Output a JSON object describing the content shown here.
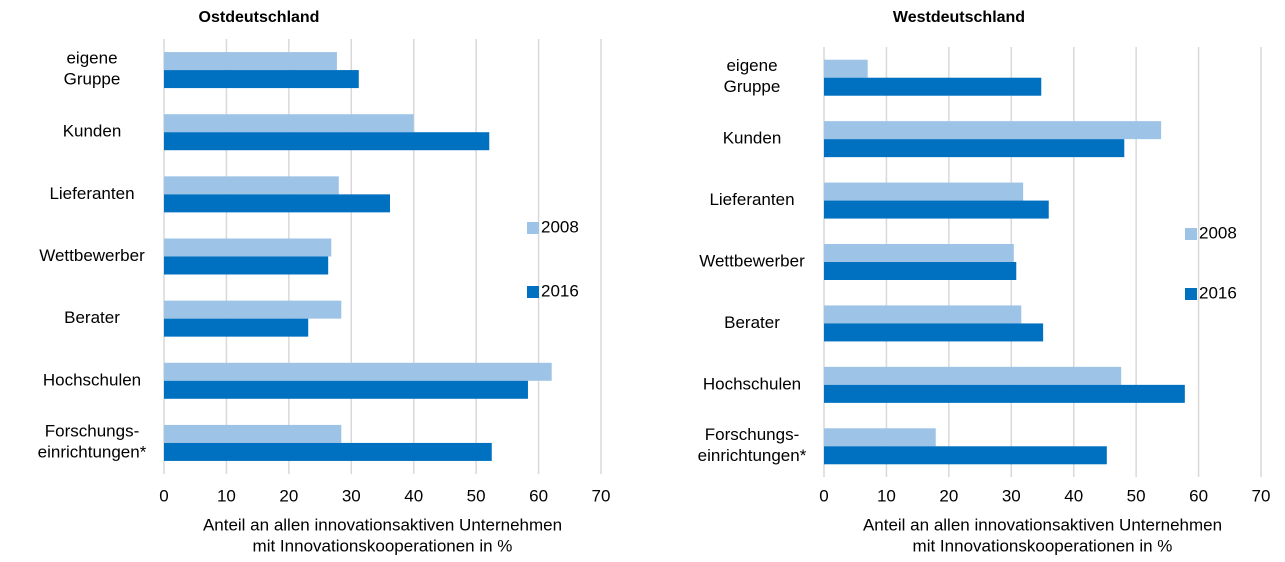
{
  "chart_data": [
    {
      "type": "bar",
      "orientation": "horizontal",
      "title": "Ostdeutschland",
      "categories": [
        "eigene\nGruppe",
        "Kunden",
        "Lieferanten",
        "Wettbewerber",
        "Berater",
        "Hochschulen",
        "Forschungs-\neinrichtungen*"
      ],
      "series": [
        {
          "name": "2008",
          "color": "#9dc3e6",
          "values": [
            27.7,
            40.0,
            28.0,
            26.8,
            28.4,
            62.1,
            28.4
          ]
        },
        {
          "name": "2016",
          "color": "#0070c0",
          "values": [
            31.2,
            52.1,
            36.2,
            26.3,
            23.1,
            58.3,
            52.5
          ]
        }
      ],
      "xlabel": "Anteil an allen innovationsaktiven Unternehmen\nmit Innovationskooperationen in %",
      "xlim": [
        0,
        70
      ],
      "xticks": [
        0,
        10,
        20,
        30,
        40,
        50,
        60,
        70
      ],
      "grid": true,
      "legend": "right"
    },
    {
      "type": "bar",
      "orientation": "horizontal",
      "title": "Westdeutschland",
      "categories": [
        "eigene\nGruppe",
        "Kunden",
        "Lieferanten",
        "Wettbewerber",
        "Berater",
        "Hochschulen",
        "Forschungs-\neinrichtungen*"
      ],
      "series": [
        {
          "name": "2008",
          "color": "#9dc3e6",
          "values": [
            7.0,
            54.0,
            31.9,
            30.4,
            31.6,
            47.6,
            17.9
          ]
        },
        {
          "name": "2016",
          "color": "#0070c0",
          "values": [
            34.8,
            48.1,
            36.0,
            30.8,
            35.1,
            57.8,
            45.3
          ]
        }
      ],
      "xlabel": "Anteil an allen innovationsaktiven Unternehmen\nmit Innovationskooperationen in %",
      "xlim": [
        0,
        70
      ],
      "xticks": [
        0,
        10,
        20,
        30,
        40,
        50,
        60,
        70
      ],
      "grid": true,
      "legend": "right"
    }
  ]
}
